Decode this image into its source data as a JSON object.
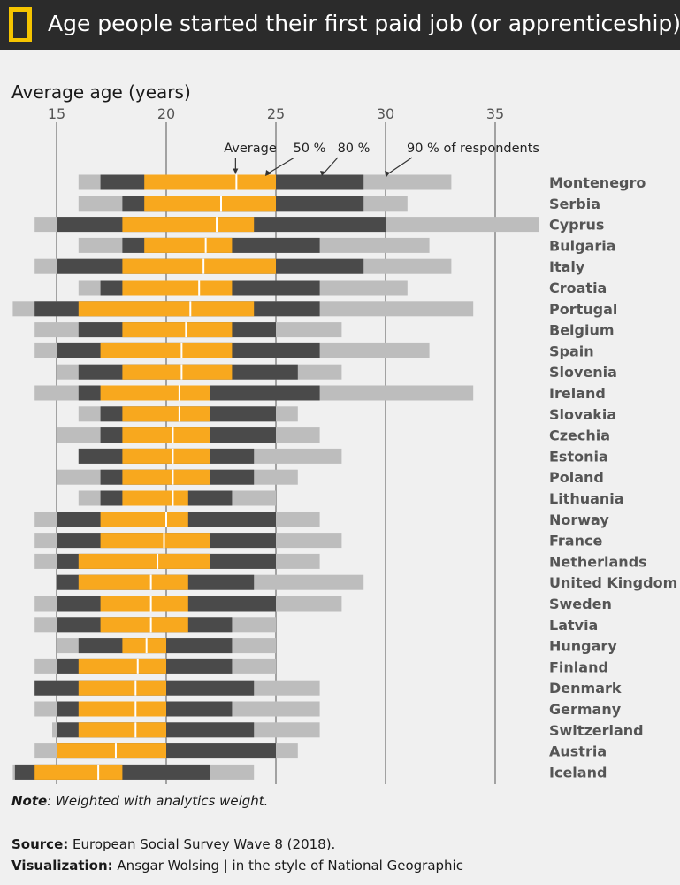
{
  "header": {
    "title": "Age people started their first paid job (or apprenticeship)"
  },
  "axis_title": "Average age (years)",
  "annotations": {
    "average": "Average",
    "p50": "50 %",
    "p80": "80 %",
    "p90": "90 % of respondents"
  },
  "note": {
    "bold": "Note",
    "text": ": Weighted with analytics weight."
  },
  "source": {
    "source_label": "Source:",
    "source_text": " European Social Survey Wave 8 (2018).",
    "viz_label": "Visualization:",
    "viz_text": " Ansgar Wolsing | in the style of National Geographic"
  },
  "colors": {
    "outer": "#bdbdbd",
    "mid": "#4a4a4a",
    "inner": "#f8a81e",
    "grid": "#555555"
  },
  "chart_data": {
    "type": "bar",
    "title": "Age people started their first paid job (or apprenticeship)",
    "xlabel": "Average age (years)",
    "xlim": [
      14,
      36
    ],
    "ticks": [
      15,
      20,
      25,
      30,
      35
    ],
    "series_names": [
      "90 % range",
      "80 % range",
      "50 % range",
      "Average"
    ],
    "countries": [
      {
        "name": "Montenegro",
        "p90": [
          16,
          33
        ],
        "p80": [
          17,
          29
        ],
        "p50": [
          19,
          25
        ],
        "avg": 23.2
      },
      {
        "name": "Serbia",
        "p90": [
          16,
          31
        ],
        "p80": [
          18,
          29
        ],
        "p50": [
          19,
          25
        ],
        "avg": 22.5
      },
      {
        "name": "Cyprus",
        "p90": [
          14,
          37
        ],
        "p80": [
          15,
          30
        ],
        "p50": [
          18,
          24
        ],
        "avg": 22.3
      },
      {
        "name": "Bulgaria",
        "p90": [
          16,
          32
        ],
        "p80": [
          18,
          27
        ],
        "p50": [
          19,
          23
        ],
        "avg": 21.8
      },
      {
        "name": "Italy",
        "p90": [
          14,
          33
        ],
        "p80": [
          15,
          29
        ],
        "p50": [
          18,
          25
        ],
        "avg": 21.7
      },
      {
        "name": "Croatia",
        "p90": [
          16,
          31
        ],
        "p80": [
          17,
          27
        ],
        "p50": [
          18,
          23
        ],
        "avg": 21.5
      },
      {
        "name": "Portugal",
        "p90": [
          13,
          34
        ],
        "p80": [
          14,
          27
        ],
        "p50": [
          16,
          24
        ],
        "avg": 21.1
      },
      {
        "name": "Belgium",
        "p90": [
          14,
          28
        ],
        "p80": [
          16,
          25
        ],
        "p50": [
          18,
          23
        ],
        "avg": 20.9
      },
      {
        "name": "Spain",
        "p90": [
          14,
          32
        ],
        "p80": [
          15,
          27
        ],
        "p50": [
          17,
          23
        ],
        "avg": 20.7
      },
      {
        "name": "Slovenia",
        "p90": [
          15,
          28
        ],
        "p80": [
          16,
          26
        ],
        "p50": [
          18,
          23
        ],
        "avg": 20.7
      },
      {
        "name": "Ireland",
        "p90": [
          14,
          34
        ],
        "p80": [
          16,
          27
        ],
        "p50": [
          17,
          22
        ],
        "avg": 20.6
      },
      {
        "name": "Slovakia",
        "p90": [
          16,
          26
        ],
        "p80": [
          17,
          25
        ],
        "p50": [
          18,
          22
        ],
        "avg": 20.6
      },
      {
        "name": "Czechia",
        "p90": [
          15,
          27
        ],
        "p80": [
          17,
          25
        ],
        "p50": [
          18,
          22
        ],
        "avg": 20.3
      },
      {
        "name": "Estonia",
        "p90": [
          16,
          28
        ],
        "p80": [
          16,
          24
        ],
        "p50": [
          18,
          22
        ],
        "avg": 20.3
      },
      {
        "name": "Poland",
        "p90": [
          15,
          26
        ],
        "p80": [
          17,
          24
        ],
        "p50": [
          18,
          22
        ],
        "avg": 20.3
      },
      {
        "name": "Lithuania",
        "p90": [
          16,
          25
        ],
        "p80": [
          17,
          23
        ],
        "p50": [
          18,
          21
        ],
        "avg": 20.3
      },
      {
        "name": "Norway",
        "p90": [
          14,
          27
        ],
        "p80": [
          15,
          25
        ],
        "p50": [
          17,
          21
        ],
        "avg": 20.0
      },
      {
        "name": "France",
        "p90": [
          14,
          28
        ],
        "p80": [
          15,
          25
        ],
        "p50": [
          17,
          22
        ],
        "avg": 19.9
      },
      {
        "name": "Netherlands",
        "p90": [
          14,
          27
        ],
        "p80": [
          15,
          25
        ],
        "p50": [
          16,
          22
        ],
        "avg": 19.6
      },
      {
        "name": "United Kingdom",
        "p90": [
          15,
          29
        ],
        "p80": [
          15,
          24
        ],
        "p50": [
          16,
          21
        ],
        "avg": 19.3
      },
      {
        "name": "Sweden",
        "p90": [
          14,
          28
        ],
        "p80": [
          15,
          25
        ],
        "p50": [
          17,
          21
        ],
        "avg": 19.3
      },
      {
        "name": "Latvia",
        "p90": [
          14,
          25
        ],
        "p80": [
          15,
          23
        ],
        "p50": [
          17,
          21
        ],
        "avg": 19.3
      },
      {
        "name": "Hungary",
        "p90": [
          15,
          25
        ],
        "p80": [
          16,
          23
        ],
        "p50": [
          18,
          20
        ],
        "avg": 19.1
      },
      {
        "name": "Finland",
        "p90": [
          14,
          25
        ],
        "p80": [
          15,
          23
        ],
        "p50": [
          16,
          20
        ],
        "avg": 18.7
      },
      {
        "name": "Denmark",
        "p90": [
          14,
          27
        ],
        "p80": [
          14,
          24
        ],
        "p50": [
          16,
          20
        ],
        "avg": 18.6
      },
      {
        "name": "Germany",
        "p90": [
          14,
          27
        ],
        "p80": [
          15,
          23
        ],
        "p50": [
          16,
          20
        ],
        "avg": 18.6
      },
      {
        "name": "Switzerland",
        "p90": [
          14.8,
          27
        ],
        "p80": [
          15,
          24
        ],
        "p50": [
          16,
          20
        ],
        "avg": 18.6
      },
      {
        "name": "Austria",
        "p90": [
          14,
          26
        ],
        "p80": [
          15,
          25
        ],
        "p50": [
          15,
          20
        ],
        "avg": 17.7
      },
      {
        "name": "Iceland",
        "p90": [
          13,
          24
        ],
        "p80": [
          13.1,
          22
        ],
        "p50": [
          14,
          18
        ],
        "avg": 16.9
      }
    ]
  }
}
